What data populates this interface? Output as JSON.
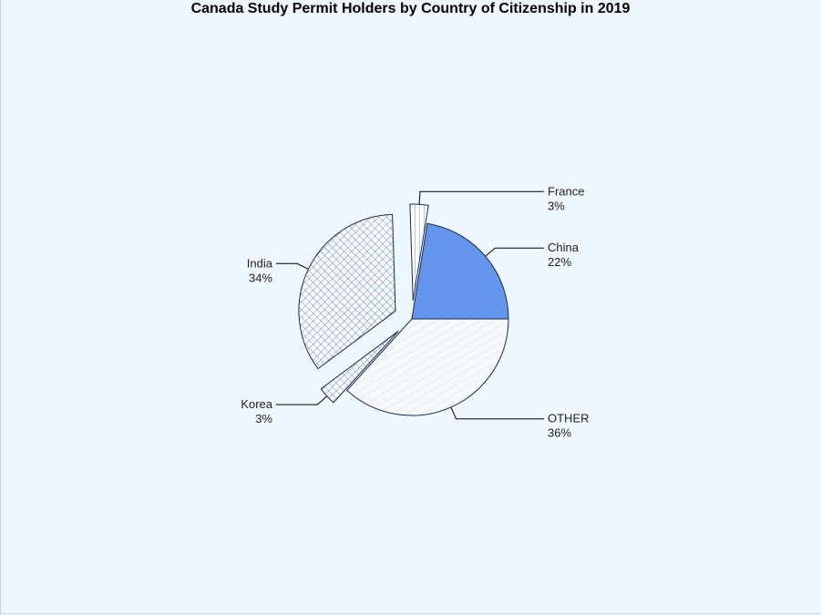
{
  "chart_data": {
    "type": "pie",
    "title": "Canada Study Permit Holders by Country of Citizenship in 2019",
    "start_angle_deg": 0,
    "direction": "counterclockwise",
    "slices": [
      {
        "label": "China",
        "percent_label": "22%",
        "value": 22,
        "exploded": false,
        "fill": "#6495ed",
        "pattern": "solid",
        "label_side": "right"
      },
      {
        "label": "France",
        "percent_label": "3%",
        "value": 3,
        "exploded": true,
        "fill": "#ffffff",
        "pattern": "vlines",
        "label_side": "right"
      },
      {
        "label": "India",
        "percent_label": "34%",
        "value": 34,
        "exploded": true,
        "fill": "#dbe9fb",
        "pattern": "crosshatch",
        "label_side": "left"
      },
      {
        "label": "Korea",
        "percent_label": "3%",
        "value": 3,
        "exploded": true,
        "fill": "#ffffff",
        "pattern": "crosshatch",
        "label_side": "left"
      },
      {
        "label": "OTHER",
        "percent_label": "36%",
        "value": 36,
        "exploded": false,
        "fill": "#f6f8fa",
        "pattern": "diagonal",
        "label_side": "right"
      }
    ],
    "colors": {
      "background": "#eef6fe",
      "outline": "#1a2a4a",
      "leader": "#000000"
    }
  }
}
